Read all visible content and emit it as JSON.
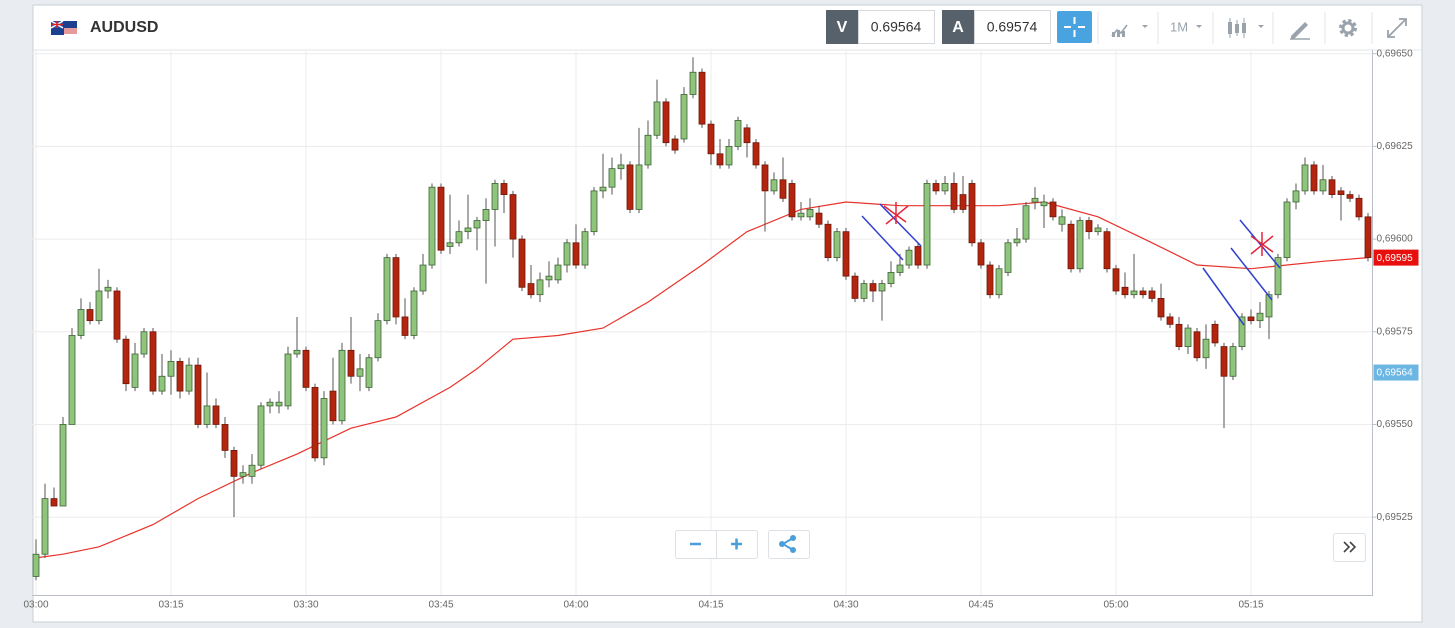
{
  "ui": {
    "symbol": "AUDUSD",
    "sell_label": "V",
    "sell_price": "0.69564",
    "buy_label": "A",
    "buy_price": "0.69574",
    "period": "1M"
  },
  "chart_data": {
    "type": "candlestick",
    "grid": true,
    "up_color": "#8fc47c",
    "down_color": "#b3250f",
    "categories": [
      "03:00",
      null,
      null,
      null,
      null,
      null,
      null,
      null,
      null,
      null,
      null,
      null,
      null,
      null,
      null,
      "03:15",
      null,
      null,
      null,
      null,
      null,
      null,
      null,
      null,
      null,
      null,
      null,
      null,
      null,
      null,
      "03:30",
      null,
      null,
      null,
      null,
      null,
      null,
      null,
      null,
      null,
      null,
      null,
      null,
      null,
      null,
      "03:45",
      null,
      null,
      null,
      null,
      null,
      null,
      null,
      null,
      null,
      null,
      null,
      null,
      null,
      null,
      "04:00",
      null,
      null,
      null,
      null,
      null,
      null,
      null,
      null,
      null,
      null,
      null,
      null,
      null,
      null,
      "04:15",
      null,
      null,
      null,
      null,
      null,
      null,
      null,
      null,
      null,
      null,
      null,
      null,
      null,
      null,
      "04:30",
      null,
      null,
      null,
      null,
      null,
      null,
      null,
      null,
      null,
      null,
      null,
      null,
      null,
      null,
      "04:45",
      null,
      null,
      null,
      null,
      null,
      null,
      null,
      null,
      null,
      null,
      null,
      null,
      null,
      null,
      "05:00",
      null,
      null,
      null,
      null,
      null,
      null,
      null,
      null,
      null,
      null,
      null,
      null,
      null,
      null,
      "05:15",
      null,
      null,
      null,
      null,
      null,
      null,
      null,
      null,
      null,
      null,
      null,
      null,
      null
    ],
    "open": [
      0.69509,
      0.69515,
      0.6953,
      0.69528,
      0.6955,
      0.69574,
      0.69581,
      0.69578,
      0.69586,
      0.69586,
      0.69573,
      0.6956,
      0.69569,
      0.69575,
      0.69559,
      0.69563,
      0.69567,
      0.69559,
      0.69566,
      0.6955,
      0.69555,
      0.6955,
      0.69543,
      0.69536,
      0.69536,
      0.69539,
      0.69555,
      0.69555,
      0.69555,
      0.69569,
      0.6957,
      0.6956,
      0.69541,
      0.69559,
      0.69551,
      0.6957,
      0.69563,
      0.6956,
      0.69568,
      0.69578,
      0.69595,
      0.69579,
      0.69574,
      0.69586,
      0.69593,
      0.69614,
      0.69598,
      0.69599,
      0.69602,
      0.69603,
      0.69605,
      0.69608,
      0.69615,
      0.69612,
      0.696,
      0.69588,
      0.69585,
      0.69589,
      0.69589,
      0.69593,
      0.69599,
      0.69593,
      0.69602,
      0.69613,
      0.69614,
      0.69619,
      0.6962,
      0.69608,
      0.6962,
      0.69628,
      0.69637,
      0.69627,
      0.69627,
      0.69639,
      0.69645,
      0.69631,
      0.69623,
      0.6962,
      0.69625,
      0.6963,
      0.69626,
      0.6962,
      0.69613,
      0.69616,
      0.69615,
      0.69606,
      0.69606,
      0.69607,
      0.69604,
      0.69595,
      0.69602,
      0.6959,
      0.69584,
      0.69588,
      0.69586,
      0.69588,
      0.69591,
      0.69593,
      0.69598,
      0.69593,
      0.69615,
      0.69613,
      0.69615,
      0.69612,
      0.69615,
      0.69599,
      0.69593,
      0.69585,
      0.69591,
      0.69599,
      0.696,
      0.6961,
      0.69609,
      0.6961,
      0.69604,
      0.69604,
      0.69592,
      0.69605,
      0.69602,
      0.69602,
      0.69592,
      0.69587,
      0.69585,
      0.69586,
      0.69586,
      0.69584,
      0.69579,
      0.69577,
      0.69571,
      0.69575,
      0.69568,
      0.69577,
      0.69571,
      0.69563,
      0.69571,
      0.69579,
      0.69578,
      0.69579,
      0.69585,
      0.69595,
      0.6961,
      0.69613,
      0.6962,
      0.69613,
      0.69616,
      0.69613,
      0.69612,
      0.69611,
      0.69606
    ],
    "high": [
      0.69519,
      0.69534,
      0.69533,
      0.69552,
      0.69576,
      0.69584,
      0.69583,
      0.69592,
      0.69589,
      0.69587,
      0.69574,
      0.69572,
      0.69576,
      0.69576,
      0.69569,
      0.6957,
      0.69568,
      0.69568,
      0.69568,
      0.69564,
      0.69557,
      0.69552,
      0.69544,
      0.69539,
      0.69542,
      0.69556,
      0.69557,
      0.69559,
      0.69571,
      0.69579,
      0.69571,
      0.69561,
      0.69559,
      0.69568,
      0.69572,
      0.69579,
      0.69569,
      0.69569,
      0.6958,
      0.69596,
      0.69596,
      0.69584,
      0.69587,
      0.69596,
      0.69615,
      0.69615,
      0.69612,
      0.69605,
      0.69612,
      0.69606,
      0.69611,
      0.69616,
      0.69616,
      0.69613,
      0.69601,
      0.69593,
      0.69591,
      0.69594,
      0.69595,
      0.696,
      0.69604,
      0.69603,
      0.69614,
      0.69623,
      0.69622,
      0.69623,
      0.69621,
      0.6963,
      0.69632,
      0.69643,
      0.69638,
      0.69628,
      0.69641,
      0.69649,
      0.69646,
      0.69632,
      0.69627,
      0.69627,
      0.69633,
      0.69631,
      0.69627,
      0.69621,
      0.69618,
      0.69622,
      0.69616,
      0.6961,
      0.69611,
      0.69609,
      0.69605,
      0.69603,
      0.69603,
      0.69591,
      0.69589,
      0.69589,
      0.69589,
      0.69594,
      0.69596,
      0.69598,
      0.69599,
      0.69616,
      0.69616,
      0.69617,
      0.69618,
      0.69617,
      0.69616,
      0.696,
      0.69594,
      0.69593,
      0.696,
      0.69603,
      0.6961,
      0.69614,
      0.69612,
      0.69611,
      0.69608,
      0.69605,
      0.69606,
      0.69606,
      0.69604,
      0.69603,
      0.69593,
      0.69591,
      0.69596,
      0.69587,
      0.69587,
      0.69588,
      0.6958,
      0.69579,
      0.69577,
      0.69576,
      0.69577,
      0.69578,
      0.69572,
      0.69572,
      0.6958,
      0.69581,
      0.69583,
      0.69586,
      0.69596,
      0.69611,
      0.69615,
      0.69622,
      0.69621,
      0.6962,
      0.69617,
      0.69614,
      0.69613,
      0.69612,
      0.69607
    ],
    "low": [
      0.69508,
      0.69514,
      0.69528,
      0.69528,
      0.6955,
      0.69573,
      0.69577,
      0.69577,
      0.69584,
      0.69572,
      0.69559,
      0.69559,
      0.69568,
      0.69558,
      0.69558,
      0.69558,
      0.69557,
      0.69558,
      0.69549,
      0.69549,
      0.69549,
      0.69541,
      0.69525,
      0.69534,
      0.69534,
      0.69538,
      0.69553,
      0.69553,
      0.69554,
      0.69568,
      0.69559,
      0.6954,
      0.69539,
      0.6955,
      0.6955,
      0.69561,
      0.69559,
      0.69559,
      0.69567,
      0.69577,
      0.69577,
      0.69573,
      0.69573,
      0.69585,
      0.69592,
      0.69596,
      0.69596,
      0.69598,
      0.696,
      0.69597,
      0.69588,
      0.69598,
      0.69607,
      0.69595,
      0.69586,
      0.69584,
      0.69583,
      0.69587,
      0.69588,
      0.69591,
      0.69592,
      0.69592,
      0.69601,
      0.69611,
      0.69612,
      0.69616,
      0.69607,
      0.69607,
      0.69619,
      0.69627,
      0.69625,
      0.69623,
      0.69626,
      0.69638,
      0.6963,
      0.6962,
      0.69619,
      0.69619,
      0.69624,
      0.69622,
      0.69619,
      0.69602,
      0.69612,
      0.6961,
      0.69605,
      0.69605,
      0.69605,
      0.69603,
      0.69594,
      0.69594,
      0.69589,
      0.69583,
      0.69583,
      0.69583,
      0.69578,
      0.69587,
      0.6959,
      0.69592,
      0.69592,
      0.69592,
      0.69612,
      0.69612,
      0.69607,
      0.69607,
      0.69598,
      0.69592,
      0.69584,
      0.69584,
      0.6959,
      0.69598,
      0.69599,
      0.69608,
      0.69603,
      0.69605,
      0.69602,
      0.69591,
      0.69591,
      0.696,
      0.69601,
      0.69591,
      0.69585,
      0.69584,
      0.69584,
      0.69584,
      0.69583,
      0.69578,
      0.69576,
      0.6957,
      0.69569,
      0.69567,
      0.69565,
      0.69571,
      0.69549,
      0.69562,
      0.6957,
      0.69577,
      0.69576,
      0.69573,
      0.69584,
      0.69594,
      0.69608,
      0.69612,
      0.69612,
      0.69612,
      0.69611,
      0.69605,
      0.6961,
      0.69605,
      0.69594
    ],
    "close": [
      0.69515,
      0.6953,
      0.69528,
      0.6955,
      0.69574,
      0.69581,
      0.69578,
      0.69586,
      0.69587,
      0.69573,
      0.69561,
      0.69569,
      0.69575,
      0.69559,
      0.69563,
      0.69567,
      0.69559,
      0.69566,
      0.6955,
      0.69555,
      0.6955,
      0.69543,
      0.69536,
      0.69537,
      0.69539,
      0.69555,
      0.69556,
      0.69556,
      0.69569,
      0.6957,
      0.6956,
      0.69541,
      0.69557,
      0.69551,
      0.6957,
      0.69563,
      0.69565,
      0.69568,
      0.69578,
      0.69595,
      0.69579,
      0.69574,
      0.69586,
      0.69593,
      0.69614,
      0.69597,
      0.69599,
      0.69602,
      0.69603,
      0.69605,
      0.69608,
      0.69615,
      0.69612,
      0.696,
      0.69587,
      0.69585,
      0.69589,
      0.6959,
      0.69593,
      0.69599,
      0.69593,
      0.69602,
      0.69613,
      0.69614,
      0.69619,
      0.6962,
      0.69608,
      0.6962,
      0.69628,
      0.69637,
      0.69626,
      0.69624,
      0.69639,
      0.69645,
      0.69631,
      0.69623,
      0.6962,
      0.69625,
      0.69632,
      0.69626,
      0.6962,
      0.69613,
      0.69616,
      0.69611,
      0.69606,
      0.69607,
      0.69608,
      0.69604,
      0.69595,
      0.69602,
      0.6959,
      0.69584,
      0.69588,
      0.69586,
      0.69588,
      0.69591,
      0.69593,
      0.69597,
      0.69593,
      0.69615,
      0.69613,
      0.69615,
      0.69608,
      0.69608,
      0.69599,
      0.69593,
      0.69585,
      0.69592,
      0.69599,
      0.696,
      0.69609,
      0.69611,
      0.6961,
      0.69606,
      0.69606,
      0.69592,
      0.69605,
      0.69602,
      0.69603,
      0.69592,
      0.69586,
      0.69585,
      0.69586,
      0.69585,
      0.69584,
      0.69579,
      0.69577,
      0.69571,
      0.69576,
      0.69568,
      0.69573,
      0.69572,
      0.69563,
      0.69571,
      0.69579,
      0.69578,
      0.6958,
      0.69585,
      0.69595,
      0.6961,
      0.69613,
      0.6962,
      0.69613,
      0.69616,
      0.69612,
      0.69612,
      0.69611,
      0.69606,
      0.69595
    ],
    "ma": {
      "color": "#e8322a",
      "x": [
        0,
        3,
        7,
        13,
        18,
        24,
        29,
        35,
        40,
        46,
        49,
        53,
        58,
        63,
        68,
        74,
        79,
        85,
        90,
        96,
        101,
        107,
        112,
        118,
        124,
        129,
        135,
        139,
        143,
        148
      ],
      "values": [
        0.69514,
        0.69515,
        0.69517,
        0.69523,
        0.6953,
        0.69537,
        0.69542,
        0.69549,
        0.69552,
        0.6956,
        0.69565,
        0.69573,
        0.69574,
        0.69576,
        0.69583,
        0.69593,
        0.69602,
        0.69608,
        0.6961,
        0.69609,
        0.69609,
        0.69609,
        0.6961,
        0.69606,
        0.69599,
        0.69593,
        0.69592,
        0.69593,
        0.69594,
        0.69595
      ]
    },
    "ylim": [
      0.69504,
      0.69651
    ],
    "yticks": [
      {
        "value": 0.6965,
        "label": "0,69650"
      },
      {
        "value": 0.69625,
        "label": "0,69625"
      },
      {
        "value": 0.696,
        "label": "0,69600"
      },
      {
        "value": 0.69575,
        "label": "0,69575"
      },
      {
        "value": 0.6955,
        "label": "0,69550"
      },
      {
        "value": 0.69525,
        "label": "0,69525"
      }
    ],
    "price_tags": [
      {
        "value": 0.69595,
        "label": "0,69595",
        "color": "#e8100e"
      },
      {
        "value": 0.69564,
        "label": "0,69564",
        "color": "#6cb6e4"
      }
    ]
  }
}
